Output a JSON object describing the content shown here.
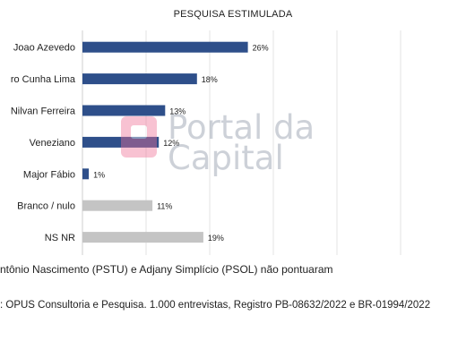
{
  "chart_data": {
    "type": "bar",
    "orientation": "horizontal",
    "title": "PESQUISA ESTIMULADA",
    "categories": [
      "Joao Azevedo",
      "ro Cunha Lima",
      "Nilvan Ferreira",
      "Veneziano",
      "Major Fábio",
      "Branco / nulo",
      "NS NR"
    ],
    "values": [
      26,
      18,
      13,
      12,
      1,
      11,
      19
    ],
    "data_labels": [
      "26%",
      "18%",
      "13%",
      "12%",
      "1%",
      "11%",
      "19%"
    ],
    "unit": "%",
    "xlim": [
      0,
      50
    ],
    "grid": "vertical",
    "colors": {
      "candidate": "#2e4f8a",
      "other": "#c4c4c4"
    },
    "bar_color_keys": [
      "candidate",
      "candidate",
      "candidate",
      "candidate",
      "candidate",
      "other",
      "other"
    ]
  },
  "notes": {
    "line1": "ntônio Nascimento (PSTU) e Adjany Simplício (PSOL) não pontuaram",
    "line2": ": OPUS Consultoria e Pesquisa. 1.000 entrevistas, Registro PB-08632/2022 e BR-01994/2022"
  },
  "watermark": {
    "line1": "Portal da",
    "line2": "Capital",
    "color": "#8a94a4",
    "mark_color": "#ef6f96"
  }
}
